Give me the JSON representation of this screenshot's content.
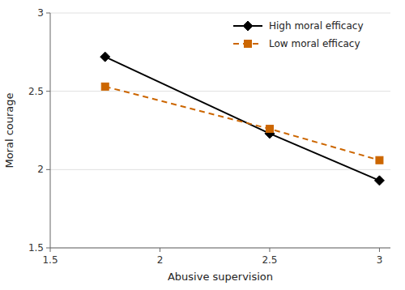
{
  "chart_data": {
    "type": "line",
    "x_label": "Abusive supervision",
    "y_label": "Moral courage",
    "x": [
      1.75,
      2.5,
      3
    ],
    "series": [
      {
        "name": "High moral efficacy",
        "color": "#000000",
        "marker": "diamond",
        "line_style": "solid",
        "values": [
          2.72,
          2.23,
          1.93
        ]
      },
      {
        "name": "Low moral efficacy",
        "color": "#cc6600",
        "marker": "square",
        "line_style": "dashed",
        "values": [
          2.53,
          2.26,
          2.06
        ]
      }
    ],
    "xlim": [
      1.5,
      3.05
    ],
    "ylim": [
      1.5,
      3
    ],
    "xticks": [
      1.5,
      2,
      2.5,
      3
    ],
    "yticks": [
      1.5,
      2,
      2.5,
      3
    ],
    "grid": true,
    "legend": "upper right"
  }
}
